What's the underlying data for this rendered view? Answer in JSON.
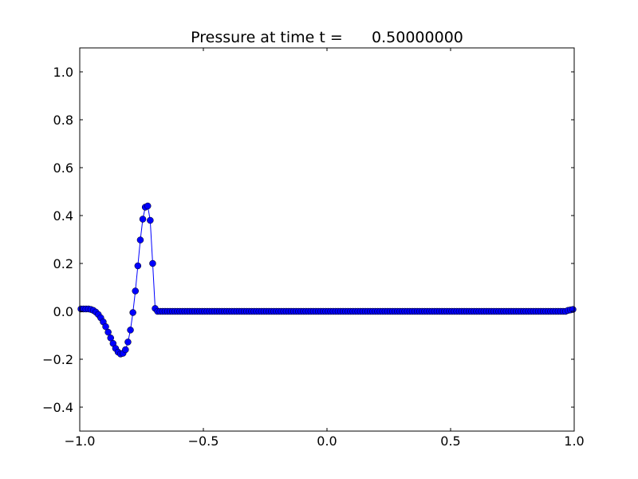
{
  "chart_data": {
    "type": "line",
    "title": "Pressure at time t =      0.50000000",
    "xlabel": "",
    "ylabel": "",
    "xlim": [
      -1.0,
      1.0
    ],
    "ylim": [
      -0.5,
      1.1
    ],
    "grid": false,
    "marker": "circle",
    "line_color": "#0000ff",
    "marker_color": "#0000ff",
    "xticks": [
      -1.0,
      -0.5,
      0.0,
      0.5,
      1.0
    ],
    "xtick_labels": [
      "−1.0",
      "−0.5",
      "0.0",
      "0.5",
      "1.0"
    ],
    "yticks": [
      -0.4,
      -0.2,
      0.0,
      0.2,
      0.4,
      0.6,
      0.8,
      1.0
    ],
    "ytick_labels": [
      "−0.4",
      "−0.2",
      "0.0",
      "0.2",
      "0.4",
      "0.6",
      "0.8",
      "1.0"
    ],
    "series": [
      {
        "x_start": -0.995,
        "x_step": 0.01,
        "values": [
          0.01,
          0.01,
          0.01,
          0.01,
          0.008,
          0.004,
          -0.003,
          -0.013,
          -0.027,
          -0.044,
          -0.064,
          -0.087,
          -0.111,
          -0.134,
          -0.155,
          -0.17,
          -0.178,
          -0.175,
          -0.16,
          -0.128,
          -0.078,
          -0.005,
          0.085,
          0.19,
          0.298,
          0.385,
          0.435,
          0.44,
          0.38,
          0.2,
          0.012,
          0.0,
          0.0,
          0.0,
          0.0,
          0.0,
          0.0,
          0.0,
          0.0,
          0.0,
          0.0,
          0.0,
          0.0,
          0.0,
          0.0,
          0.0,
          0.0,
          0.0,
          0.0,
          0.0,
          0.0,
          0.0,
          0.0,
          0.0,
          0.0,
          0.0,
          0.0,
          0.0,
          0.0,
          0.0,
          0.0,
          0.0,
          0.0,
          0.0,
          0.0,
          0.0,
          0.0,
          0.0,
          0.0,
          0.0,
          0.0,
          0.0,
          0.0,
          0.0,
          0.0,
          0.0,
          0.0,
          0.0,
          0.0,
          0.0,
          0.0,
          0.0,
          0.0,
          0.0,
          0.0,
          0.0,
          0.0,
          0.0,
          0.0,
          0.0,
          0.0,
          0.0,
          0.0,
          0.0,
          0.0,
          0.0,
          0.0,
          0.0,
          0.0,
          0.0,
          0.0,
          0.0,
          0.0,
          0.0,
          0.0,
          0.0,
          0.0,
          0.0,
          0.0,
          0.0,
          0.0,
          0.0,
          0.0,
          0.0,
          0.0,
          0.0,
          0.0,
          0.0,
          0.0,
          0.0,
          0.0,
          0.0,
          0.0,
          0.0,
          0.0,
          0.0,
          0.0,
          0.0,
          0.0,
          0.0,
          0.0,
          0.0,
          0.0,
          0.0,
          0.0,
          0.0,
          0.0,
          0.0,
          0.0,
          0.0,
          0.0,
          0.0,
          0.0,
          0.0,
          0.0,
          0.0,
          0.0,
          0.0,
          0.0,
          0.0,
          0.0,
          0.0,
          0.0,
          0.0,
          0.0,
          0.0,
          0.0,
          0.0,
          0.0,
          0.0,
          0.0,
          0.0,
          0.0,
          0.0,
          0.0,
          0.0,
          0.0,
          0.0,
          0.0,
          0.0,
          0.0,
          0.0,
          0.0,
          0.0,
          0.0,
          0.0,
          0.0,
          0.0,
          0.0,
          0.0,
          0.0,
          0.0,
          0.0,
          0.0,
          0.0,
          0.0,
          0.0,
          0.0,
          0.0,
          0.0,
          0.0,
          0.0,
          0.0,
          0.0,
          0.0,
          0.0,
          0.0,
          0.004,
          0.006,
          0.008
        ]
      }
    ]
  }
}
